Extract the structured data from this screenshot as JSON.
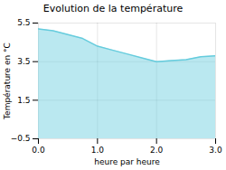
{
  "chart_data": {
    "type": "area",
    "title": "Evolution de la température",
    "x_label": "heure par heure",
    "y_label": "Température en °C",
    "x": [
      0,
      0.25,
      0.5,
      0.75,
      1.0,
      1.25,
      1.5,
      1.75,
      2.0,
      2.25,
      2.5,
      2.75,
      3.0
    ],
    "values": [
      5.2,
      5.1,
      4.9,
      4.7,
      4.3,
      4.1,
      3.9,
      3.7,
      3.5,
      3.55,
      3.6,
      3.75,
      3.8
    ],
    "color": "#66ccdd",
    "xlim": [
      0,
      3
    ],
    "ylim": [
      -0.5,
      5.5
    ],
    "xticks": [
      0,
      1,
      2,
      3
    ],
    "yticks": [
      -0.5,
      1.5,
      3.5,
      5.5
    ],
    "grid": true
  }
}
